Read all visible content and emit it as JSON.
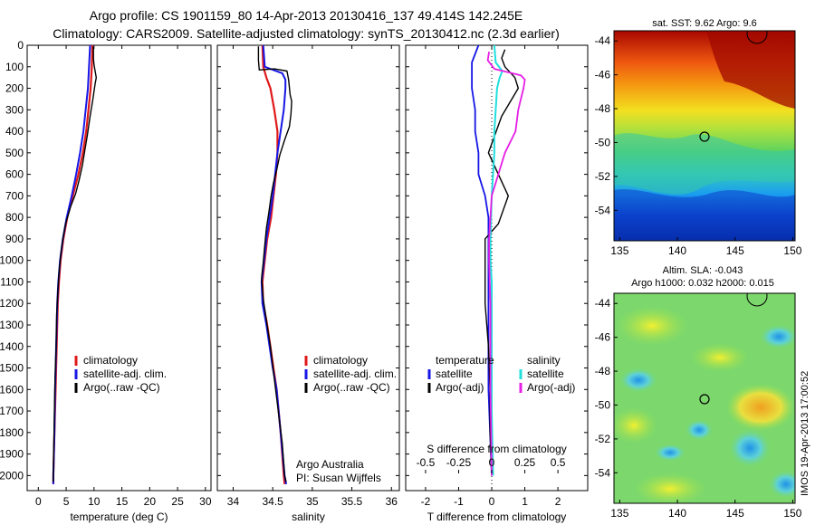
{
  "titles": {
    "line1": "Argo profile: CS 1901159_80 14-Apr-2013 20130416_137 49.414S 142.245E",
    "line2": "Climatology: CARS2009. Satellite-adjusted climatology: synTS_20130412.nc (2.3d earlier)"
  },
  "colors": {
    "climatology": "#e0191a",
    "satellite": "#1616e6",
    "argo": "#000000",
    "sat_salinity": "#22dede",
    "argo_salinity": "#e61ee6"
  },
  "chart_data": [
    {
      "type": "line",
      "id": "temperature",
      "xlabel": "temperature (deg C)",
      "xlim": [
        -2,
        31
      ],
      "ylim": [
        2070,
        0
      ],
      "xticks": [
        "0",
        "5",
        "10",
        "15",
        "20",
        "25",
        "30"
      ],
      "yticks": [
        "0",
        "100",
        "200",
        "300",
        "400",
        "500",
        "600",
        "700",
        "800",
        "900",
        "1000",
        "1100",
        "1200",
        "1300",
        "1400",
        "1500",
        "1600",
        "1700",
        "1800",
        "1900",
        "2000"
      ],
      "legend": [
        "climatology",
        "satellite-adj. clim.",
        "Argo(..raw -QC)"
      ],
      "series": [
        {
          "name": "climatology",
          "color_key": "climatology",
          "width": 2.2,
          "points": [
            [
              9.7,
              0
            ],
            [
              9.6,
              100
            ],
            [
              9.4,
              200
            ],
            [
              9.0,
              300
            ],
            [
              8.6,
              400
            ],
            [
              8.0,
              500
            ],
            [
              7.2,
              600
            ],
            [
              6.2,
              700
            ],
            [
              5.2,
              800
            ],
            [
              4.5,
              900
            ],
            [
              4.0,
              1000
            ],
            [
              3.7,
              1100
            ],
            [
              3.5,
              1200
            ],
            [
              3.3,
              1400
            ],
            [
              3.1,
              1600
            ],
            [
              2.9,
              1800
            ],
            [
              2.7,
              2000
            ],
            [
              2.7,
              2040
            ]
          ]
        },
        {
          "name": "satellite-adj. clim.",
          "color_key": "satellite",
          "width": 2.0,
          "points": [
            [
              9.3,
              0
            ],
            [
              9.1,
              100
            ],
            [
              8.9,
              200
            ],
            [
              8.5,
              300
            ],
            [
              8.1,
              400
            ],
            [
              7.5,
              500
            ],
            [
              6.8,
              600
            ],
            [
              6.0,
              700
            ],
            [
              5.1,
              800
            ],
            [
              4.4,
              900
            ],
            [
              3.9,
              1000
            ],
            [
              3.6,
              1100
            ],
            [
              3.4,
              1200
            ],
            [
              3.2,
              1400
            ],
            [
              3.0,
              1600
            ],
            [
              2.9,
              1800
            ],
            [
              2.7,
              2000
            ],
            [
              2.7,
              2040
            ]
          ]
        },
        {
          "name": "Argo(..raw -QC)",
          "color_key": "argo",
          "width": 1.4,
          "points": [
            [
              9.9,
              5
            ],
            [
              9.9,
              60
            ],
            [
              10.0,
              90
            ],
            [
              10.4,
              150
            ],
            [
              10.2,
              180
            ],
            [
              9.8,
              250
            ],
            [
              9.3,
              330
            ],
            [
              8.8,
              420
            ],
            [
              8.4,
              480
            ],
            [
              7.9,
              560
            ],
            [
              7.3,
              630
            ],
            [
              6.7,
              690
            ],
            [
              5.8,
              750
            ],
            [
              4.9,
              830
            ],
            [
              4.4,
              900
            ],
            [
              4.0,
              980
            ],
            [
              3.7,
              1060
            ],
            [
              3.5,
              1150
            ],
            [
              3.3,
              1250
            ],
            [
              3.2,
              1400
            ],
            [
              3.0,
              1550
            ],
            [
              2.9,
              1700
            ],
            [
              2.8,
              1850
            ],
            [
              2.7,
              2000
            ],
            [
              2.7,
              2030
            ]
          ]
        }
      ]
    },
    {
      "type": "line",
      "id": "salinity",
      "xlabel": "salinity",
      "xlim": [
        33.8,
        36.1
      ],
      "ylim": [
        2070,
        0
      ],
      "xticks": [
        "34",
        "34.5",
        "35",
        "35.5",
        "36"
      ],
      "legend": [
        "climatology",
        "satellite-adj. clim.",
        "Argo(..raw -QC)"
      ],
      "annotation": [
        "Argo Australia",
        "PI: Susan Wijffels"
      ],
      "series": [
        {
          "name": "climatology",
          "color_key": "climatology",
          "width": 2.2,
          "points": [
            [
              34.37,
              0
            ],
            [
              34.38,
              100
            ],
            [
              34.42,
              150
            ],
            [
              34.47,
              200
            ],
            [
              34.52,
              300
            ],
            [
              34.56,
              400
            ],
            [
              34.56,
              500
            ],
            [
              34.54,
              600
            ],
            [
              34.51,
              700
            ],
            [
              34.48,
              800
            ],
            [
              34.43,
              900
            ],
            [
              34.4,
              1000
            ],
            [
              34.37,
              1100
            ],
            [
              34.38,
              1200
            ],
            [
              34.43,
              1300
            ],
            [
              34.47,
              1400
            ],
            [
              34.51,
              1500
            ],
            [
              34.55,
              1600
            ],
            [
              34.6,
              1800
            ],
            [
              34.64,
              2000
            ],
            [
              34.65,
              2040
            ]
          ]
        },
        {
          "name": "satellite-adj. clim.",
          "color_key": "satellite",
          "width": 2.0,
          "points": [
            [
              34.38,
              0
            ],
            [
              34.4,
              100
            ],
            [
              34.62,
              130
            ],
            [
              34.66,
              160
            ],
            [
              34.66,
              200
            ],
            [
              34.64,
              300
            ],
            [
              34.6,
              400
            ],
            [
              34.56,
              500
            ],
            [
              34.53,
              600
            ],
            [
              34.5,
              700
            ],
            [
              34.46,
              800
            ],
            [
              34.42,
              900
            ],
            [
              34.39,
              1000
            ],
            [
              34.36,
              1100
            ],
            [
              34.37,
              1200
            ],
            [
              34.42,
              1300
            ],
            [
              34.46,
              1400
            ],
            [
              34.5,
              1500
            ],
            [
              34.55,
              1600
            ],
            [
              34.6,
              1800
            ],
            [
              34.65,
              2000
            ],
            [
              34.67,
              2040
            ]
          ]
        },
        {
          "name": "Argo(..raw -QC)",
          "color_key": "argo",
          "width": 1.4,
          "points": [
            [
              34.32,
              5
            ],
            [
              34.32,
              70
            ],
            [
              34.33,
              115
            ],
            [
              34.52,
              110
            ],
            [
              34.68,
              120
            ],
            [
              34.7,
              160
            ],
            [
              34.72,
              230
            ],
            [
              34.74,
              260
            ],
            [
              34.73,
              320
            ],
            [
              34.71,
              380
            ],
            [
              34.65,
              440
            ],
            [
              34.59,
              510
            ],
            [
              34.55,
              580
            ],
            [
              34.51,
              640
            ],
            [
              34.48,
              700
            ],
            [
              34.45,
              780
            ],
            [
              34.42,
              850
            ],
            [
              34.4,
              930
            ],
            [
              34.38,
              1010
            ],
            [
              34.36,
              1080
            ],
            [
              34.38,
              1180
            ],
            [
              34.42,
              1280
            ],
            [
              34.47,
              1400
            ],
            [
              34.52,
              1550
            ],
            [
              34.57,
              1700
            ],
            [
              34.62,
              1850
            ],
            [
              34.65,
              2000
            ],
            [
              34.67,
              2030
            ]
          ]
        }
      ]
    },
    {
      "type": "line",
      "id": "difference",
      "xlabel": "T difference from climatology",
      "xlabel_top": "S difference from climatology",
      "xlim": [
        -2.6,
        2.9
      ],
      "ylim": [
        2070,
        0
      ],
      "xticks": [
        "-2",
        "-1",
        "0",
        "1",
        "2"
      ],
      "xticks_top": [
        "-0.5",
        "-0.25",
        "0",
        "0.25",
        "0.5"
      ],
      "legend_temperature": {
        "title": "temperature",
        "items": [
          "satellite",
          "Argo(-adj)"
        ]
      },
      "legend_salinity": {
        "title": "salinity",
        "items": [
          "satellite",
          "Argo(-adj)"
        ]
      },
      "series": [
        {
          "name": "satellite",
          "group": "temperature",
          "color_key": "satellite",
          "width": 1.8,
          "points": [
            [
              -0.4,
              0
            ],
            [
              -0.6,
              80
            ],
            [
              -0.6,
              200
            ],
            [
              -0.5,
              300
            ],
            [
              -0.5,
              400
            ],
            [
              -0.4,
              500
            ],
            [
              -0.4,
              600
            ],
            [
              -0.2,
              700
            ],
            [
              -0.1,
              800
            ],
            [
              -0.1,
              900
            ],
            [
              -0.1,
              1000
            ],
            [
              -0.1,
              1100
            ],
            [
              -0.1,
              1200
            ],
            [
              -0.1,
              1400
            ],
            [
              -0.1,
              1600
            ],
            [
              -0.05,
              1800
            ],
            [
              0,
              2000
            ]
          ]
        },
        {
          "name": "Argo(-adj)",
          "group": "temperature",
          "color_key": "argo",
          "width": 1.4,
          "points": [
            [
              0.4,
              20
            ],
            [
              0.3,
              60
            ],
            [
              0.4,
              100
            ],
            [
              0.7,
              150
            ],
            [
              0.8,
              200
            ],
            [
              0.3,
              330
            ],
            [
              -0.1,
              500
            ],
            [
              0.2,
              600
            ],
            [
              0.5,
              700
            ],
            [
              0.2,
              830
            ],
            [
              -0.2,
              900
            ],
            [
              -0.2,
              1000
            ],
            [
              -0.2,
              1200
            ],
            [
              -0.1,
              1400
            ],
            [
              -0.05,
              1600
            ],
            [
              -0.05,
              1800
            ],
            [
              0,
              2000
            ]
          ]
        },
        {
          "name": "satellite",
          "group": "salinity",
          "color_key": "sat_salinity",
          "width": 2.0,
          "points": [
            [
              0.02,
              0
            ],
            [
              0.03,
              80
            ],
            [
              0.08,
              120
            ],
            [
              0.06,
              150
            ],
            [
              0.04,
              200
            ],
            [
              0.03,
              300
            ],
            [
              0.02,
              400
            ],
            [
              0.02,
              500
            ],
            [
              0.01,
              600
            ],
            [
              0.0,
              700
            ],
            [
              -0.01,
              900
            ],
            [
              -0.01,
              1000
            ],
            [
              0.0,
              1100
            ],
            [
              0.0,
              1300
            ],
            [
              0.0,
              1500
            ],
            [
              0.0,
              1700
            ],
            [
              0.01,
              2000
            ]
          ]
        },
        {
          "name": "Argo(-adj)",
          "group": "salinity",
          "color_key": "argo_salinity",
          "width": 1.8,
          "points": [
            [
              -0.02,
              30
            ],
            [
              -0.03,
              70
            ],
            [
              0.02,
              110
            ],
            [
              0.22,
              140
            ],
            [
              0.25,
              160
            ],
            [
              0.24,
              200
            ],
            [
              0.2,
              300
            ],
            [
              0.18,
              400
            ],
            [
              0.1,
              500
            ],
            [
              0.05,
              600
            ],
            [
              0.0,
              700
            ],
            [
              -0.02,
              900
            ],
            [
              -0.02,
              1000
            ],
            [
              -0.01,
              1200
            ],
            [
              -0.01,
              1400
            ],
            [
              -0.01,
              1600
            ],
            [
              0.0,
              2000
            ]
          ]
        }
      ]
    },
    {
      "type": "heatmap",
      "id": "sst_map",
      "title": "sat. SST: 9.62 Argo: 9.6",
      "xticks": [
        "135",
        "140",
        "145",
        "150"
      ],
      "yticks": [
        "-44",
        "-46",
        "-48",
        "-50",
        "-52",
        "-54"
      ],
      "xlim": [
        134.5,
        150.2
      ],
      "ylim": [
        -55.8,
        -43.4
      ],
      "marker": {
        "lon": 142.245,
        "lat": -49.414
      }
    },
    {
      "type": "heatmap",
      "id": "sla_map",
      "title": "Altim. SLA: -0.043",
      "subtitle": "Argo h1000: 0.032 h2000: 0.015",
      "xticks": [
        "135",
        "140",
        "145",
        "150"
      ],
      "yticks": [
        "-44",
        "-46",
        "-48",
        "-50",
        "-52",
        "-54"
      ],
      "xlim": [
        134.5,
        150.2
      ],
      "ylim": [
        -55.8,
        -43.4
      ],
      "marker": {
        "lon": 142.245,
        "lat": -49.414
      }
    }
  ],
  "side_label": "IMOS 19-Apr-2013 17:00:52"
}
